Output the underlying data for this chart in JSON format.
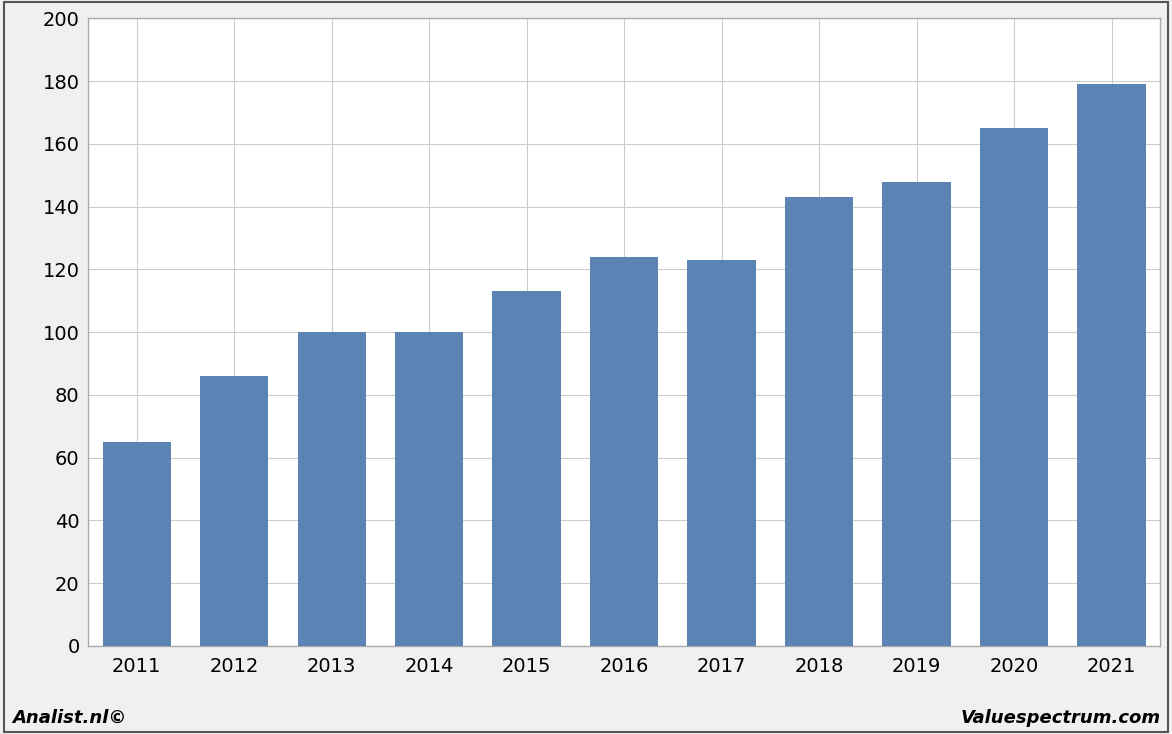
{
  "categories": [
    "2011",
    "2012",
    "2013",
    "2014",
    "2015",
    "2016",
    "2017",
    "2018",
    "2019",
    "2020",
    "2021"
  ],
  "values": [
    65,
    86,
    100,
    100,
    113,
    124,
    123,
    143,
    148,
    165,
    179
  ],
  "bar_color": "#5b84b5",
  "ylim": [
    0,
    200
  ],
  "yticks": [
    0,
    20,
    40,
    60,
    80,
    100,
    120,
    140,
    160,
    180,
    200
  ],
  "fig_background": "#f0f0f0",
  "plot_background": "#ffffff",
  "grid_color": "#cccccc",
  "border_color": "#aaaaaa",
  "footer_left": "Analist.nl©",
  "footer_right": "Valuespectrum.com",
  "footer_fontsize": 13,
  "tick_fontsize": 14,
  "bar_width": 0.7
}
